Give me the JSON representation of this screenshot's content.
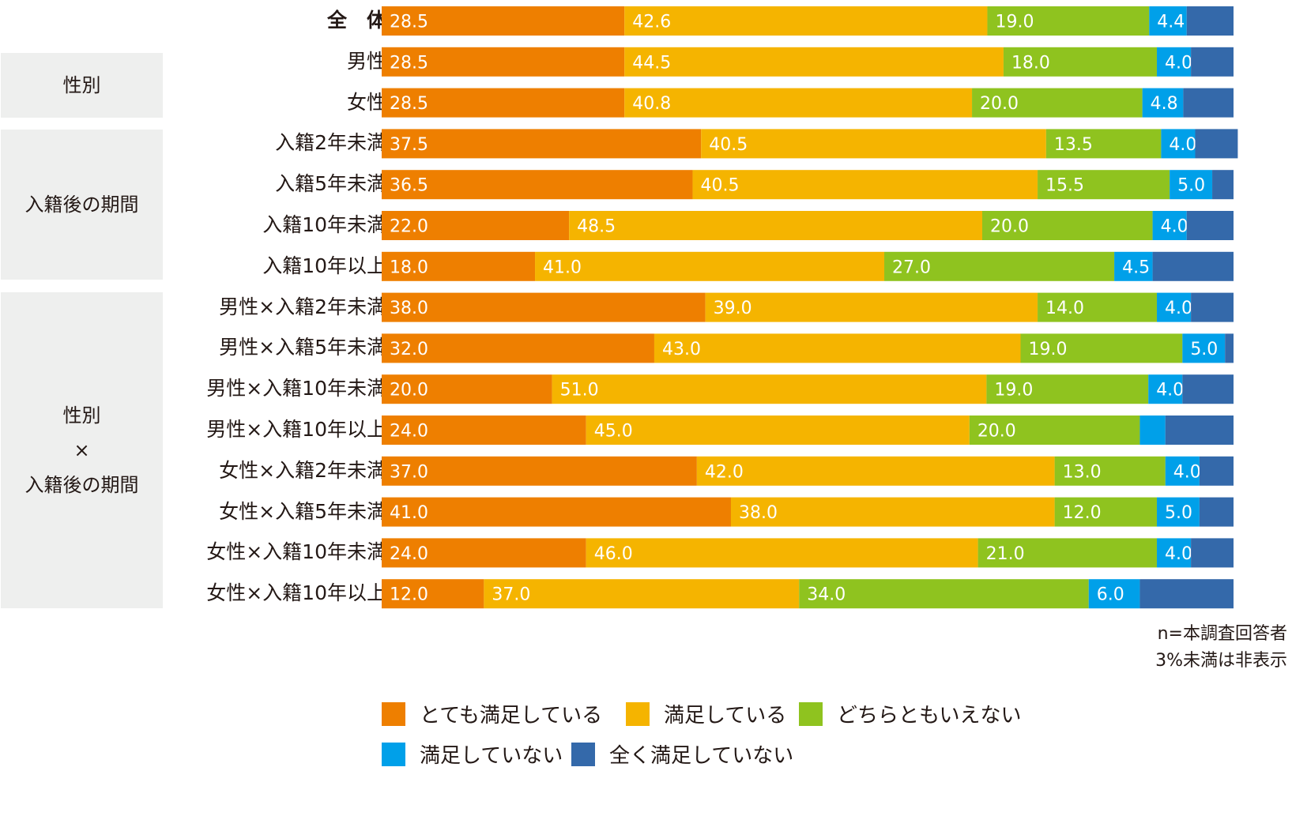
{
  "chart_data": {
    "type": "bar",
    "orientation": "horizontal",
    "stacked": true,
    "percent": true,
    "groups": [
      {
        "label_lines": [
          "性別"
        ],
        "rows": [
          "男性",
          "女性"
        ]
      },
      {
        "label_lines": [
          "入籍後の期間"
        ],
        "rows": [
          "入籍2年未満",
          "入籍5年未満",
          "入籍10年未満",
          "入籍10年以上"
        ]
      },
      {
        "label_lines": [
          "性別",
          "×",
          "入籍後の期間"
        ],
        "rows": [
          "男性×入籍2年未満",
          "男性×入籍5年未満",
          "男性×入籍10年未満",
          "男性×入籍10年以上",
          "女性×入籍2年未満",
          "女性×入籍5年未満",
          "女性×入籍10年未満",
          "女性×入籍10年以上"
        ]
      }
    ],
    "categories": [
      "全　体",
      "男性",
      "女性",
      "入籍2年未満",
      "入籍5年未満",
      "入籍10年未満",
      "入籍10年以上",
      "男性×入籍2年未満",
      "男性×入籍5年未満",
      "男性×入籍10年未満",
      "男性×入籍10年以上",
      "女性×入籍2年未満",
      "女性×入籍5年未満",
      "女性×入籍10年未満",
      "女性×入籍10年以上"
    ],
    "series": [
      {
        "name": "とても満足している",
        "color": "#ee7f00",
        "values": [
          28.5,
          28.5,
          28.5,
          37.5,
          36.5,
          22.0,
          18.0,
          38.0,
          32.0,
          20.0,
          24.0,
          37.0,
          41.0,
          24.0,
          12.0
        ],
        "labels": [
          "28.5",
          "28.5",
          "28.5",
          "37.5",
          "36.5",
          "22.0",
          "18.0",
          "38.0",
          "32.0",
          "20.0",
          "24.0",
          "37.0",
          "41.0",
          "24.0",
          "12.0"
        ]
      },
      {
        "name": "満足している",
        "color": "#f5b400",
        "values": [
          42.6,
          44.5,
          40.8,
          40.5,
          40.5,
          48.5,
          41.0,
          39.0,
          43.0,
          51.0,
          45.0,
          42.0,
          38.0,
          46.0,
          37.0
        ],
        "labels": [
          "42.6",
          "44.5",
          "40.8",
          "40.5",
          "40.5",
          "48.5",
          "41.0",
          "39.0",
          "43.0",
          "51.0",
          "45.0",
          "42.0",
          "38.0",
          "46.0",
          "37.0"
        ]
      },
      {
        "name": "どちらともいえない",
        "color": "#8fc31f",
        "values": [
          19.0,
          18.0,
          20.0,
          13.5,
          15.5,
          20.0,
          27.0,
          14.0,
          19.0,
          19.0,
          20.0,
          13.0,
          12.0,
          21.0,
          34.0
        ],
        "labels": [
          "19.0",
          "18.0",
          "20.0",
          "13.5",
          "15.5",
          "20.0",
          "27.0",
          "14.0",
          "19.0",
          "19.0",
          "20.0",
          "13.0",
          "12.0",
          "21.0",
          "34.0"
        ]
      },
      {
        "name": "満足していない",
        "color": "#00a0e9",
        "values": [
          4.4,
          4.0,
          4.8,
          4.0,
          5.0,
          4.0,
          4.5,
          4.0,
          5.0,
          4.0,
          3.0,
          4.0,
          5.0,
          4.0,
          6.0
        ],
        "labels": [
          "4.4",
          "4.0",
          "4.8",
          "4.0",
          "5.0",
          "4.0",
          "4.5",
          "4.0",
          "5.0",
          "4.0",
          "",
          "4.0",
          "5.0",
          "4.0",
          "6.0"
        ]
      },
      {
        "name": "全く満足していない",
        "color": "#3469aa",
        "values": [
          5.5,
          5.0,
          5.9,
          5.0,
          2.5,
          5.5,
          9.5,
          5.0,
          1.0,
          6.0,
          8.0,
          4.0,
          4.0,
          5.0,
          11.0
        ],
        "labels": [
          "",
          "",
          "",
          "",
          "",
          "",
          "",
          "",
          "",
          "",
          "",
          "",
          "",
          "",
          ""
        ]
      }
    ],
    "xlim": [
      0,
      100
    ],
    "legend_position": "bottom",
    "notes": [
      "n=本調査回答者",
      "3%未満は非表示"
    ]
  }
}
